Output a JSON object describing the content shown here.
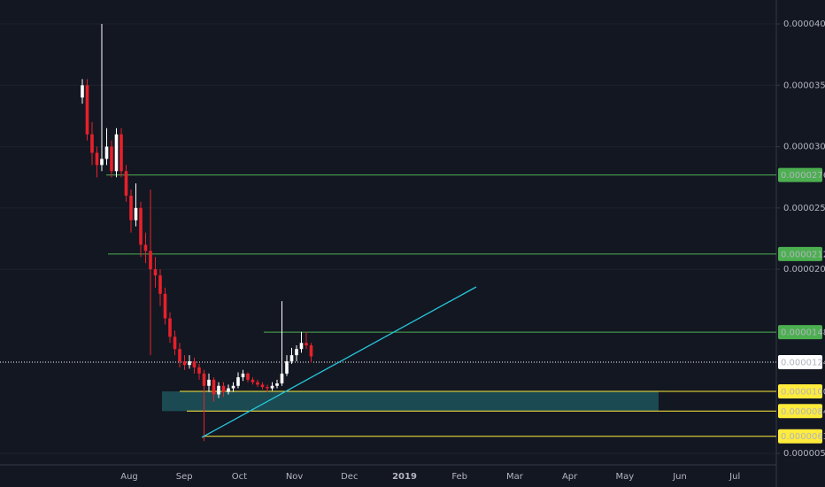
{
  "chart_data": {
    "type": "candlestick",
    "candles": [
      [
        3.4e-05,
        3.55e-05,
        3.35e-05,
        3.5e-05
      ],
      [
        3.5e-05,
        3.55e-05,
        3.05e-05,
        3.1e-05
      ],
      [
        3.1e-05,
        3.2e-05,
        2.85e-05,
        2.95e-05
      ],
      [
        2.95e-05,
        3e-05,
        2.75e-05,
        2.85e-05
      ],
      [
        2.85e-05,
        4e-05,
        2.8e-05,
        2.9e-05
      ],
      [
        2.9e-05,
        3.15e-05,
        2.85e-05,
        3e-05
      ],
      [
        3e-05,
        3.05e-05,
        2.75e-05,
        2.8e-05
      ],
      [
        2.8e-05,
        3.15e-05,
        2.75e-05,
        3.1e-05
      ],
      [
        3.1e-05,
        3.15e-05,
        2.75e-05,
        2.8e-05
      ],
      [
        2.8e-05,
        2.85e-05,
        2.55e-05,
        2.6e-05
      ],
      [
        2.6e-05,
        2.65e-05,
        2.3e-05,
        2.4e-05
      ],
      [
        2.4e-05,
        2.7e-05,
        2.35e-05,
        2.5e-05
      ],
      [
        2.5e-05,
        2.55e-05,
        2.1e-05,
        2.2e-05
      ],
      [
        2.2e-05,
        2.3e-05,
        2.05e-05,
        2.15e-05
      ],
      [
        2.15e-05,
        2.65e-05,
        1.3e-05,
        2e-05
      ],
      [
        2e-05,
        2.1e-05,
        1.85e-05,
        1.95e-05
      ],
      [
        1.95e-05,
        2e-05,
        1.7e-05,
        1.8e-05
      ],
      [
        1.8e-05,
        1.85e-05,
        1.55e-05,
        1.6e-05
      ],
      [
        1.6e-05,
        1.65e-05,
        1.4e-05,
        1.45e-05
      ],
      [
        1.45e-05,
        1.5e-05,
        1.3e-05,
        1.35e-05
      ],
      [
        1.35e-05,
        1.4e-05,
        1.2e-05,
        1.25e-05
      ],
      [
        1.25e-05,
        1.3e-05,
        1.18e-05,
        1.22e-05
      ],
      [
        1.22e-05,
        1.3e-05,
        1.19e-05,
        1.25e-05
      ],
      [
        1.25e-05,
        1.28e-05,
        1.15e-05,
        1.2e-05
      ],
      [
        1.2e-05,
        1.23e-05,
        1.1e-05,
        1.15e-05
      ],
      [
        1.15e-05,
        1.18e-05,
        6e-06,
        1.05e-05
      ],
      [
        1.05e-05,
        1.15e-05,
        1e-05,
        1.1e-05
      ],
      [
        1.1e-05,
        1.12e-05,
        9.2e-06,
        9.8e-06
      ],
      [
        9.8e-06,
        1.08e-05,
        9.5e-06,
        1.05e-05
      ],
      [
        1.05e-05,
        1.08e-05,
        9.6e-06,
        1e-05
      ],
      [
        1e-05,
        1.06e-05,
        9.8e-06,
        1.03e-05
      ],
      [
        1.03e-05,
        1.08e-05,
        1e-05,
        1.05e-05
      ],
      [
        1.05e-05,
        1.16e-05,
        1.03e-05,
        1.12e-05
      ],
      [
        1.12e-05,
        1.18e-05,
        1.09e-05,
        1.15e-05
      ],
      [
        1.15e-05,
        1.16e-05,
        1.08e-05,
        1.1e-05
      ],
      [
        1.1e-05,
        1.12e-05,
        1.06e-05,
        1.08e-05
      ],
      [
        1.08e-05,
        1.1e-05,
        1.04e-05,
        1.06e-05
      ],
      [
        1.06e-05,
        1.08e-05,
        1.02e-05,
        1.04e-05
      ],
      [
        1.04e-05,
        1.06e-05,
        1e-05,
        1.03e-05
      ],
      [
        1.03e-05,
        1.08e-05,
        1.01e-05,
        1.05e-05
      ],
      [
        1.05e-05,
        1.1e-05,
        1.03e-05,
        1.07e-05
      ],
      [
        1.07e-05,
        1.74e-05,
        1.05e-05,
        1.15e-05
      ],
      [
        1.15e-05,
        1.3e-05,
        1.13e-05,
        1.25e-05
      ],
      [
        1.25e-05,
        1.36e-05,
        1.23e-05,
        1.3e-05
      ],
      [
        1.3e-05,
        1.38e-05,
        1.25e-05,
        1.35e-05
      ],
      [
        1.35e-05,
        1.49e-05,
        1.32e-05,
        1.4e-05
      ],
      [
        1.4e-05,
        1.49e-05,
        1.35e-05,
        1.38e-05
      ],
      [
        1.38e-05,
        1.4e-05,
        1.24e-05,
        1.29e-05
      ]
    ],
    "up_color": "#ffffff",
    "down_color": "#e8202a",
    "ylim": [
      4.06e-06,
      4.195e-05
    ],
    "yticks": [
      {
        "value": 4e-05,
        "label": "0.00004000"
      },
      {
        "value": 3.5e-05,
        "label": "0.00003500"
      },
      {
        "value": 3e-05,
        "label": "0.00003000"
      },
      {
        "value": 2.5e-05,
        "label": "0.00002500"
      },
      {
        "value": 2e-05,
        "label": "0.00002000"
      },
      {
        "value": 5e-06,
        "label": "0.00000500"
      }
    ],
    "x_labels": [
      "Aug",
      "Sep",
      "Oct",
      "Nov",
      "Dec",
      "2019",
      "Feb",
      "Mar",
      "Apr",
      "May",
      "Jun",
      "Jul"
    ],
    "levels": [
      {
        "value": 2.769e-05,
        "color": "#4caf50"
      },
      {
        "value": 2.125e-05,
        "color": "#4caf50"
      },
      {
        "value": 1.488e-05,
        "color": "#4caf50"
      },
      {
        "value": 1.243e-05,
        "color": "#ffffff"
      },
      {
        "value": 1.005e-05,
        "color": "#ffeb3b"
      },
      {
        "value": 8.44e-06,
        "color": "#ffeb3b"
      },
      {
        "value": 6.39e-06,
        "color": "#ffeb3b"
      }
    ],
    "grid": true
  }
}
